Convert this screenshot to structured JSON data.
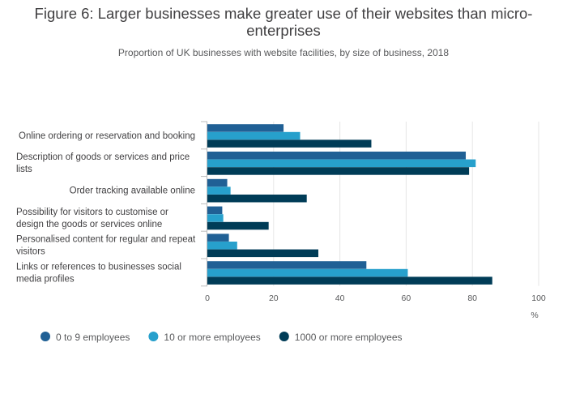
{
  "chart_data": {
    "type": "bar",
    "orientation": "horizontal",
    "title": "Figure 6: Larger businesses make greater use of their websites than micro-enterprises",
    "subtitle": "Proportion of UK businesses with website facilities, by size of business, 2018",
    "xlabel": "%",
    "xlim": [
      0,
      100
    ],
    "xticks": [
      "0",
      "20",
      "40",
      "60",
      "80",
      "100"
    ],
    "grid": true,
    "legend_position": "bottom-left",
    "categories": [
      "Online ordering or reservation and booking",
      "Description of goods or services and price lists",
      "Order tracking available online",
      "Possibility for visitors to customise or design the goods or services online",
      "Personalised content for regular and repeat visitors",
      "Links or references to businesses social media profiles"
    ],
    "series": [
      {
        "name": "0 to 9 employees",
        "color": "#206095",
        "values": [
          23,
          78,
          6,
          4.5,
          6.5,
          48
        ]
      },
      {
        "name": "10 or more employees",
        "color": "#27a0cc",
        "values": [
          28,
          81,
          7,
          4.8,
          9,
          60.5
        ]
      },
      {
        "name": "1000 or more employees",
        "color": "#003c57",
        "values": [
          49.5,
          79,
          30,
          18.5,
          33.5,
          86
        ]
      }
    ]
  }
}
